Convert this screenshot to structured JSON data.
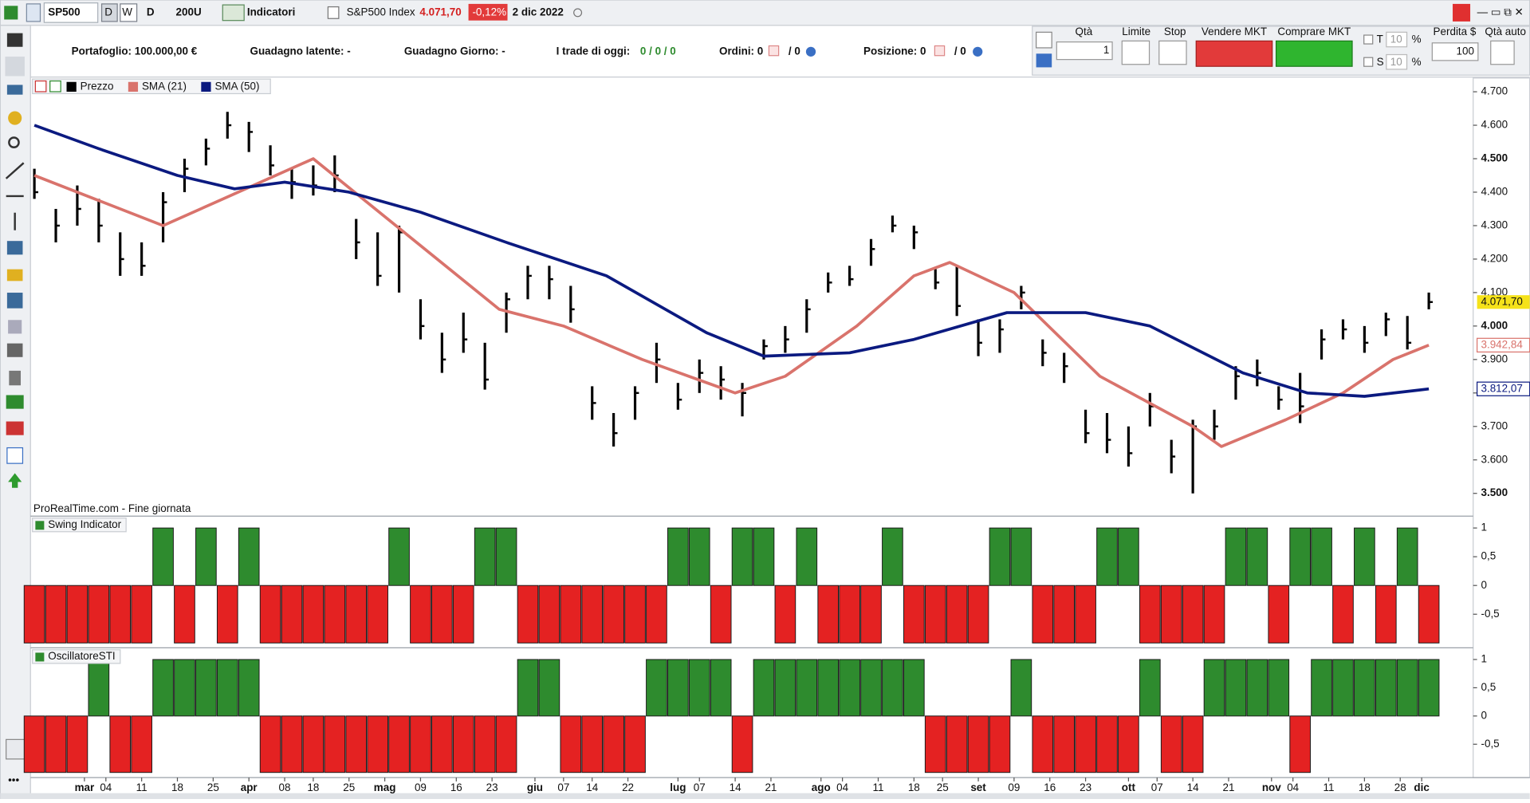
{
  "toolbar": {
    "symbol": "SP500",
    "period_d": "D",
    "period_w": "W",
    "timeframe": "D",
    "units": "200U",
    "indicators": "Indicatori",
    "instrument": "S&P500 Index",
    "price": "4.071,70",
    "change": "-0,12%",
    "date": "2 dic 2022"
  },
  "account": {
    "portfolio": "Portafoglio: 100.000,00 €",
    "latent": "Guadagno latente: -",
    "day": "Guadagno Giorno: -",
    "trades_label": "I trade di oggi:",
    "trades": "0 / 0 / 0",
    "orders": "Ordini: 0",
    "orders_count": "/ 0",
    "position": "Posizione: 0",
    "position_count": "/ 0"
  },
  "order_panel": {
    "qty_label": "Qtà",
    "qty": "1",
    "limit": "Limite",
    "stop": "Stop",
    "sell": "Vendere MKT",
    "buy": "Comprare MKT",
    "t": "T",
    "t_val": "10",
    "pct1": "%",
    "s": "S",
    "s_val": "10",
    "pct2": "%",
    "loss": "Perdita $",
    "loss_val": "100",
    "auto": "Qtà auto"
  },
  "footer_note": "ProRealTime.com - Fine giornata",
  "chart_data": [
    {
      "type": "ohlc",
      "name": "Prezzo",
      "color": "#000000",
      "last_label": "4.071,70",
      "x": [
        0,
        3,
        6,
        9,
        12,
        15,
        18,
        21,
        24,
        27,
        30,
        33,
        36,
        39,
        42,
        45,
        48,
        51,
        54,
        57,
        60,
        63,
        66,
        69,
        72,
        75,
        78,
        81,
        84,
        87,
        90,
        93,
        96,
        99,
        102,
        105,
        108,
        111,
        114,
        117,
        120,
        123,
        126,
        129,
        132,
        135,
        138,
        141,
        144,
        147,
        150,
        153,
        156,
        159,
        162,
        165,
        168,
        171,
        174,
        177,
        180,
        183,
        186,
        189,
        192,
        195
      ],
      "high": [
        4470,
        4350,
        4420,
        4380,
        4280,
        4250,
        4400,
        4500,
        4560,
        4640,
        4610,
        4540,
        4470,
        4480,
        4510,
        4320,
        4280,
        4300,
        4080,
        3980,
        4040,
        3950,
        4100,
        4180,
        4180,
        4120,
        3820,
        3740,
        3820,
        3950,
        3830,
        3900,
        3880,
        3830,
        3960,
        4000,
        4080,
        4160,
        4180,
        4260,
        4330,
        4300,
        4170,
        4180,
        4020,
        4020,
        4120,
        3960,
        3920,
        3750,
        3740,
        3700,
        3800,
        3660,
        3720,
        3750,
        3880,
        3900,
        3820,
        3860,
        3990,
        4020,
        4000,
        4040,
        4030,
        4100
      ],
      "low": [
        4380,
        4250,
        4300,
        4250,
        4150,
        4150,
        4250,
        4400,
        4480,
        4560,
        4520,
        4450,
        4380,
        4390,
        4400,
        4200,
        4120,
        4100,
        3960,
        3860,
        3920,
        3810,
        3980,
        4080,
        4080,
        4010,
        3720,
        3640,
        3720,
        3830,
        3750,
        3800,
        3780,
        3730,
        3900,
        3920,
        3980,
        4100,
        4120,
        4180,
        4280,
        4230,
        4110,
        4030,
        3910,
        3920,
        4050,
        3880,
        3830,
        3650,
        3620,
        3580,
        3700,
        3560,
        3500,
        3660,
        3780,
        3820,
        3750,
        3710,
        3900,
        3960,
        3920,
        3970,
        3930,
        4050
      ],
      "close": [
        4400,
        4300,
        4350,
        4300,
        4200,
        4180,
        4370,
        4470,
        4530,
        4600,
        4580,
        4480,
        4430,
        4420,
        4450,
        4250,
        4150,
        4280,
        4000,
        3900,
        3960,
        3840,
        4080,
        4150,
        4140,
        4050,
        3770,
        3680,
        3800,
        3900,
        3780,
        3860,
        3840,
        3800,
        3940,
        3960,
        4050,
        4130,
        4140,
        4230,
        4300,
        4280,
        4130,
        4060,
        3950,
        3990,
        4100,
        3920,
        3880,
        3680,
        3660,
        3620,
        3760,
        3610,
        3700,
        3700,
        3850,
        3860,
        3780,
        3760,
        3960,
        3990,
        3950,
        4020,
        3950,
        4071.7
      ],
      "overlays": [
        {
          "name": "SMA (21)",
          "color": "#d9736c",
          "value_label": "3.942,84",
          "x": [
            0,
            18,
            39,
            65,
            74,
            85,
            98,
            105,
            115,
            123,
            128,
            137,
            149,
            162,
            166,
            175,
            183,
            190,
            195
          ],
          "values": [
            4450,
            4300,
            4500,
            4050,
            4000,
            3900,
            3800,
            3850,
            4000,
            4150,
            4190,
            4100,
            3850,
            3700,
            3640,
            3720,
            3800,
            3900,
            3942.84
          ]
        },
        {
          "name": "SMA (50)",
          "color": "#0b1a80",
          "value_label": "3.812,07",
          "x": [
            0,
            9,
            20,
            28,
            35,
            44,
            54,
            66,
            80,
            94,
            102,
            114,
            123,
            136,
            147,
            156,
            169,
            178,
            186,
            195
          ],
          "values": [
            4600,
            4530,
            4450,
            4410,
            4430,
            4400,
            4340,
            4250,
            4150,
            3980,
            3910,
            3920,
            3960,
            4040,
            4040,
            4000,
            3860,
            3800,
            3790,
            3812.07
          ]
        }
      ],
      "xlim": [
        -0.27,
        201.2
      ],
      "ylim": [
        3435,
        4741
      ],
      "yticks": [
        {
          "value": 4700,
          "label": "4.700"
        },
        {
          "value": 4600,
          "label": "4.600"
        },
        {
          "value": 4500,
          "label": "4.500"
        },
        {
          "value": 4400,
          "label": "4.400"
        },
        {
          "value": 4300,
          "label": "4.300"
        },
        {
          "value": 4200,
          "label": "4.200"
        },
        {
          "value": 4100,
          "label": "4.100"
        },
        {
          "value": 4000,
          "label": "4.000"
        },
        {
          "value": 3900,
          "label": "3.900"
        },
        {
          "value": 3800,
          "label": "3.800"
        },
        {
          "value": 3700,
          "label": "3.700"
        },
        {
          "value": 3600,
          "label": "3.600"
        },
        {
          "value": 3500,
          "label": "3.500"
        }
      ],
      "xticks": [
        {
          "value": 7,
          "label": "mar"
        },
        {
          "value": 10,
          "label": "04"
        },
        {
          "value": 15,
          "label": "11"
        },
        {
          "value": 20,
          "label": "18"
        },
        {
          "value": 25,
          "label": "25"
        },
        {
          "value": 30,
          "label": "apr"
        },
        {
          "value": 35,
          "label": "08"
        },
        {
          "value": 39,
          "label": "18"
        },
        {
          "value": 44,
          "label": "25"
        },
        {
          "value": 49,
          "label": "mag"
        },
        {
          "value": 54,
          "label": "09"
        },
        {
          "value": 59,
          "label": "16"
        },
        {
          "value": 64,
          "label": "23"
        },
        {
          "value": 70,
          "label": "giu"
        },
        {
          "value": 74,
          "label": "07"
        },
        {
          "value": 78,
          "label": "14"
        },
        {
          "value": 83,
          "label": "22"
        },
        {
          "value": 90,
          "label": "lug"
        },
        {
          "value": 93,
          "label": "07"
        },
        {
          "value": 98,
          "label": "14"
        },
        {
          "value": 103,
          "label": "21"
        },
        {
          "value": 110,
          "label": "ago"
        },
        {
          "value": 113,
          "label": "04"
        },
        {
          "value": 118,
          "label": "11"
        },
        {
          "value": 123,
          "label": "18"
        },
        {
          "value": 127,
          "label": "25"
        },
        {
          "value": 132,
          "label": "set"
        },
        {
          "value": 137,
          "label": "09"
        },
        {
          "value": 142,
          "label": "16"
        },
        {
          "value": 147,
          "label": "23"
        },
        {
          "value": 153,
          "label": "ott"
        },
        {
          "value": 157,
          "label": "07"
        },
        {
          "value": 162,
          "label": "14"
        },
        {
          "value": 167,
          "label": "21"
        },
        {
          "value": 173,
          "label": "nov"
        },
        {
          "value": 176,
          "label": "04"
        },
        {
          "value": 181,
          "label": "11"
        },
        {
          "value": 186,
          "label": "18"
        },
        {
          "value": 191,
          "label": "28"
        },
        {
          "value": 194,
          "label": "dic"
        }
      ]
    },
    {
      "type": "bar",
      "title": "Swing Indicator",
      "up_color": "#2e8b2e",
      "down_color": "#e42222",
      "x": [
        0,
        3,
        6,
        9,
        12,
        15,
        18,
        21,
        24,
        27,
        30,
        33,
        36,
        39,
        42,
        45,
        48,
        51,
        54,
        57,
        60,
        63,
        66,
        69,
        72,
        75,
        78,
        81,
        84,
        87,
        90,
        93,
        96,
        99,
        102,
        105,
        108,
        111,
        114,
        117,
        120,
        123,
        126,
        129,
        132,
        135,
        138,
        141,
        144,
        147,
        150,
        153,
        156,
        159,
        162,
        165,
        168,
        171,
        174,
        177,
        180,
        183,
        186,
        189,
        192,
        195
      ],
      "values": [
        -1,
        -1,
        -1,
        -1,
        -1,
        -1,
        1,
        -1,
        1,
        -1,
        1,
        -1,
        -1,
        -1,
        -1,
        -1,
        -1,
        1,
        -1,
        -1,
        -1,
        1,
        1,
        -1,
        -1,
        -1,
        -1,
        -1,
        -1,
        -1,
        1,
        1,
        -1,
        1,
        1,
        -1,
        1,
        -1,
        -1,
        -1,
        1,
        -1,
        -1,
        -1,
        -1,
        1,
        1,
        -1,
        -1,
        -1,
        1,
        1,
        -1,
        -1,
        -1,
        -1,
        1,
        1,
        -1,
        1,
        1,
        -1,
        1,
        -1,
        1,
        -1
      ],
      "xlim": [
        -0.27,
        201.2
      ],
      "ylim": [
        -1.05,
        1.19
      ],
      "yticks": [
        1,
        {
          "value": 0.5,
          "label": "0,5"
        },
        0,
        {
          "value": -0.5,
          "label": "-0,5"
        }
      ]
    },
    {
      "type": "bar",
      "title": "OscillatoreSTI",
      "up_color": "#2e8b2e",
      "down_color": "#e42222",
      "x": [
        0,
        3,
        6,
        9,
        12,
        15,
        18,
        21,
        24,
        27,
        30,
        33,
        36,
        39,
        42,
        45,
        48,
        51,
        54,
        57,
        60,
        63,
        66,
        69,
        72,
        75,
        78,
        81,
        84,
        87,
        90,
        93,
        96,
        99,
        102,
        105,
        108,
        111,
        114,
        117,
        120,
        123,
        126,
        129,
        132,
        135,
        138,
        141,
        144,
        147,
        150,
        153,
        156,
        159,
        162,
        165,
        168,
        171,
        174,
        177,
        180,
        183,
        186,
        189,
        192,
        195
      ],
      "values": [
        -1,
        -1,
        -1,
        1,
        -1,
        -1,
        1,
        1,
        1,
        1,
        1,
        -1,
        -1,
        -1,
        -1,
        -1,
        -1,
        -1,
        -1,
        -1,
        -1,
        -1,
        -1,
        1,
        1,
        -1,
        -1,
        -1,
        -1,
        1,
        1,
        1,
        1,
        -1,
        1,
        1,
        1,
        1,
        1,
        1,
        1,
        1,
        -1,
        -1,
        -1,
        -1,
        1,
        -1,
        -1,
        -1,
        -1,
        -1,
        1,
        -1,
        -1,
        1,
        1,
        1,
        1,
        -1,
        1,
        1,
        1,
        1,
        1,
        1
      ],
      "xlim": [
        -0.27,
        201.2
      ],
      "ylim": [
        -1.09,
        1.19
      ],
      "yticks": [
        1,
        {
          "value": 0.5,
          "label": "0,5"
        },
        0,
        {
          "value": -0.5,
          "label": "-0,5"
        }
      ]
    }
  ]
}
